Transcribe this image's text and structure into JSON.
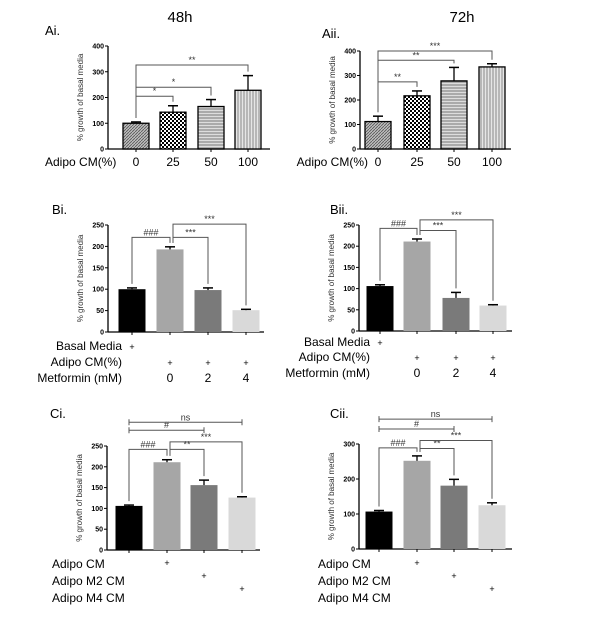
{
  "chart_data": [
    {
      "id": "Ai",
      "type": "bar",
      "panel_label": "Ai.",
      "title": "48h",
      "ylabel": "% growth of basal media",
      "ylim": [
        0,
        400
      ],
      "yticks": [
        0,
        100,
        200,
        300,
        400
      ],
      "row_labels": [
        "Adipo CM(%)"
      ],
      "row_values": [
        [
          "0",
          "25",
          "50",
          "100"
        ]
      ],
      "values": [
        100,
        143,
        165,
        228
      ],
      "errors": [
        5,
        25,
        27,
        57
      ],
      "fills": [
        "pattern-diag",
        "pattern-check",
        "pattern-hlines",
        "pattern-vlines"
      ],
      "comparisons": [
        [
          0,
          1,
          "*"
        ],
        [
          0,
          2,
          "*"
        ],
        [
          0,
          3,
          "**"
        ]
      ]
    },
    {
      "id": "Aii",
      "type": "bar",
      "panel_label": "Aii.",
      "title": "72h",
      "ylabel": "% growth of basal media",
      "ylim": [
        0,
        400
      ],
      "yticks": [
        0,
        100,
        200,
        300,
        400
      ],
      "row_labels": [
        "Adipo CM(%)"
      ],
      "row_values": [
        [
          "0",
          "25",
          "50",
          "100"
        ]
      ],
      "values": [
        112,
        217,
        278,
        335
      ],
      "errors": [
        22,
        20,
        55,
        13
      ],
      "fills": [
        "pattern-diag",
        "pattern-check",
        "pattern-hlines",
        "pattern-vlines"
      ],
      "comparisons": [
        [
          0,
          1,
          "**"
        ],
        [
          0,
          2,
          "**"
        ],
        [
          0,
          3,
          "***"
        ]
      ]
    },
    {
      "id": "Bi",
      "type": "bar",
      "panel_label": "Bi.",
      "ylabel": "% growth of basal media",
      "ylim": [
        0,
        250
      ],
      "yticks": [
        0,
        50,
        100,
        150,
        200,
        250
      ],
      "row_labels": [
        "Basal Media",
        "Adipo CM(%)",
        "Metformin (mM)"
      ],
      "row_values": [
        [
          "+",
          "",
          "",
          ""
        ],
        [
          "",
          "+",
          "+",
          "+"
        ],
        [
          "",
          "0",
          "2",
          "4"
        ]
      ],
      "values": [
        100,
        193,
        98,
        51
      ],
      "errors": [
        3,
        6,
        5,
        2
      ],
      "fills": [
        "#000000",
        "#a6a6a6",
        "#7a7a7a",
        "#d9d9d9"
      ],
      "comparisons": [
        [
          0,
          1,
          "###"
        ],
        [
          1,
          2,
          "***"
        ],
        [
          1,
          3,
          "***"
        ]
      ]
    },
    {
      "id": "Bii",
      "type": "bar",
      "panel_label": "Bii.",
      "ylabel": "% growth of basal media",
      "ylim": [
        0,
        250
      ],
      "yticks": [
        0,
        50,
        100,
        150,
        200,
        250
      ],
      "row_labels": [
        "Basal Media",
        "Adipo CM(%)",
        "Metformin (mM)"
      ],
      "row_values": [
        [
          "+",
          "",
          "",
          ""
        ],
        [
          "",
          "+",
          "+",
          "+"
        ],
        [
          "",
          "0",
          "2",
          "4"
        ]
      ],
      "values": [
        106,
        211,
        78,
        60
      ],
      "errors": [
        3,
        6,
        13,
        2
      ],
      "fills": [
        "#000000",
        "#a6a6a6",
        "#7a7a7a",
        "#d9d9d9"
      ],
      "comparisons": [
        [
          0,
          1,
          "###"
        ],
        [
          1,
          2,
          "***"
        ],
        [
          1,
          3,
          "***"
        ]
      ]
    },
    {
      "id": "Ci",
      "type": "bar",
      "panel_label": "Ci.",
      "ylabel": "% growth of basal media",
      "ylim": [
        0,
        250
      ],
      "yticks": [
        0,
        50,
        100,
        150,
        200,
        250
      ],
      "row_labels": [
        "Adipo CM",
        "Adipo M2 CM",
        "Adipo M4 CM"
      ],
      "row_values": [
        [
          "",
          "+",
          "",
          ""
        ],
        [
          "",
          "",
          "+",
          ""
        ],
        [
          "",
          "",
          "",
          "+"
        ]
      ],
      "values": [
        106,
        211,
        156,
        126
      ],
      "errors": [
        2,
        6,
        12,
        2
      ],
      "fills": [
        "#000000",
        "#a6a6a6",
        "#7a7a7a",
        "#d9d9d9"
      ],
      "comparisons": [
        [
          0,
          1,
          "###"
        ],
        [
          1,
          2,
          "**"
        ],
        [
          1,
          3,
          "***"
        ],
        [
          0,
          2,
          "#"
        ],
        [
          0,
          3,
          "ns"
        ]
      ]
    },
    {
      "id": "Cii",
      "type": "bar",
      "panel_label": "Cii.",
      "ylabel": "% growth of basal media",
      "ylim": [
        0,
        300
      ],
      "yticks": [
        0,
        100,
        200,
        300
      ],
      "row_labels": [
        "Adipo CM",
        "Adipo M2 CM",
        "Adipo M4 CM"
      ],
      "row_values": [
        [
          "",
          "+",
          "",
          ""
        ],
        [
          "",
          "",
          "+",
          ""
        ],
        [
          "",
          "",
          "",
          "+"
        ]
      ],
      "values": [
        107,
        252,
        181,
        125
      ],
      "errors": [
        3,
        14,
        18,
        7
      ],
      "fills": [
        "#000000",
        "#a6a6a6",
        "#7a7a7a",
        "#d9d9d9"
      ],
      "comparisons": [
        [
          0,
          1,
          "###"
        ],
        [
          1,
          2,
          "**"
        ],
        [
          1,
          3,
          "***"
        ],
        [
          0,
          2,
          "#"
        ],
        [
          0,
          3,
          "ns"
        ]
      ]
    }
  ]
}
